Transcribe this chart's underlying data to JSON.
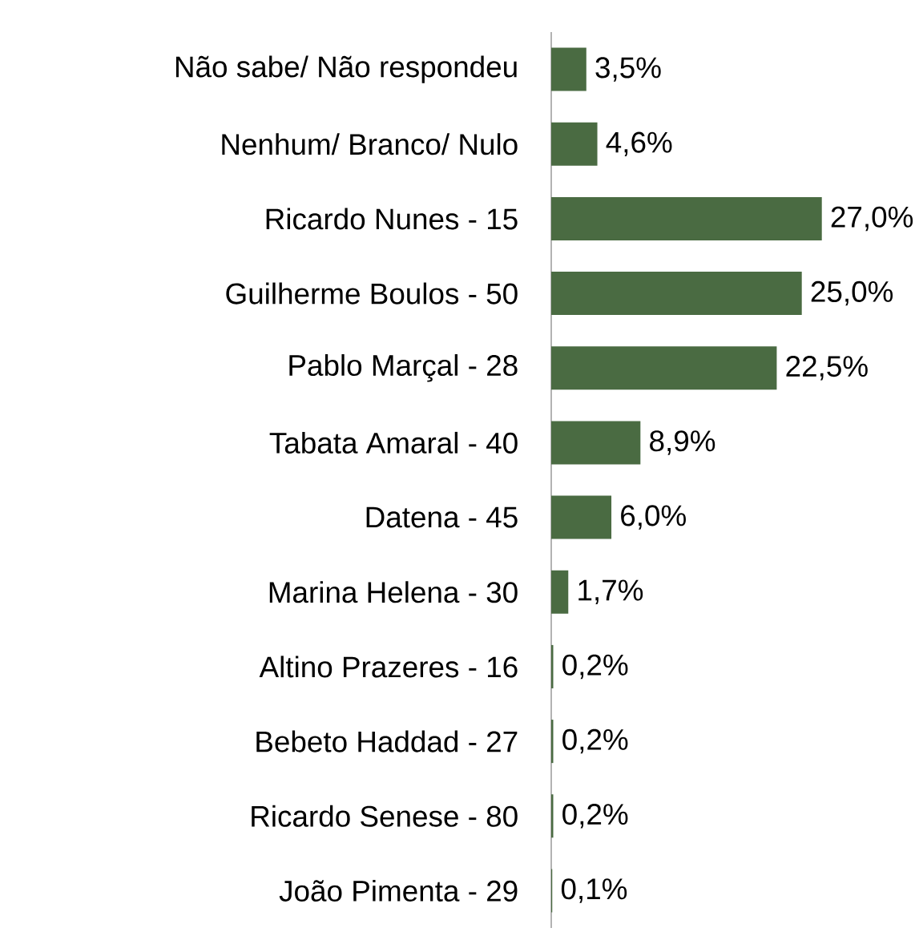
{
  "chart_data": {
    "type": "bar",
    "orientation": "horizontal",
    "color": "#4a6b42",
    "categories": [
      "Não sabe/ Não respondeu",
      "Nenhum/ Branco/ Nulo",
      "Ricardo Nunes - 15",
      "Guilherme Boulos - 50",
      "Pablo Marçal - 28",
      "Tabata Amaral - 40",
      "Datena - 45",
      "Marina Helena - 30",
      "Altino Prazeres - 16",
      "Bebeto Haddad - 27",
      "Ricardo Senese - 80",
      "João Pimenta - 29"
    ],
    "values": [
      3.5,
      4.6,
      27.0,
      25.0,
      22.5,
      8.9,
      6.0,
      1.7,
      0.2,
      0.2,
      0.2,
      0.1
    ],
    "value_labels": [
      "3,5%",
      "4,6%",
      "27,0%",
      "25,0%",
      "22,5%",
      "8,9%",
      "6,0%",
      "1,7%",
      "0,2%",
      "0,2%",
      "0,2%",
      "0,1%"
    ]
  }
}
